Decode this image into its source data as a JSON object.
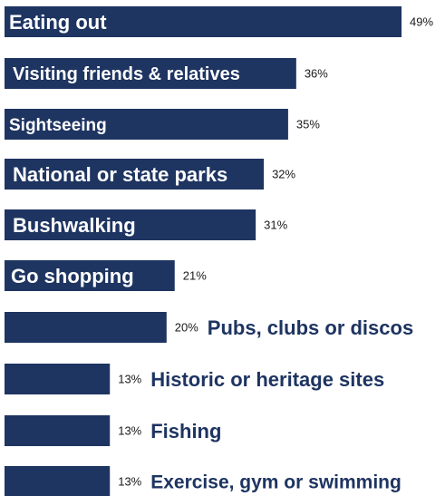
{
  "chart_data": {
    "type": "bar",
    "orientation": "horizontal",
    "categories": [
      "Eating out",
      "Visiting friends & relatives",
      "Sightseeing",
      "National or state parks",
      "Bushwalking",
      "Go shopping",
      "Pubs, clubs or discos",
      "Historic or heritage sites",
      "Fishing",
      "Exercise, gym or swimming"
    ],
    "values": [
      49,
      36,
      35,
      32,
      31,
      21,
      20,
      13,
      13,
      13
    ],
    "value_labels": [
      "49%",
      "36%",
      "35%",
      "32%",
      "31%",
      "21%",
      "20%",
      "13%",
      "13%",
      "13%"
    ],
    "unit": "%",
    "grid": false,
    "legend": "none",
    "bar_color": "#1e3461",
    "label_color": "#1e3461"
  }
}
